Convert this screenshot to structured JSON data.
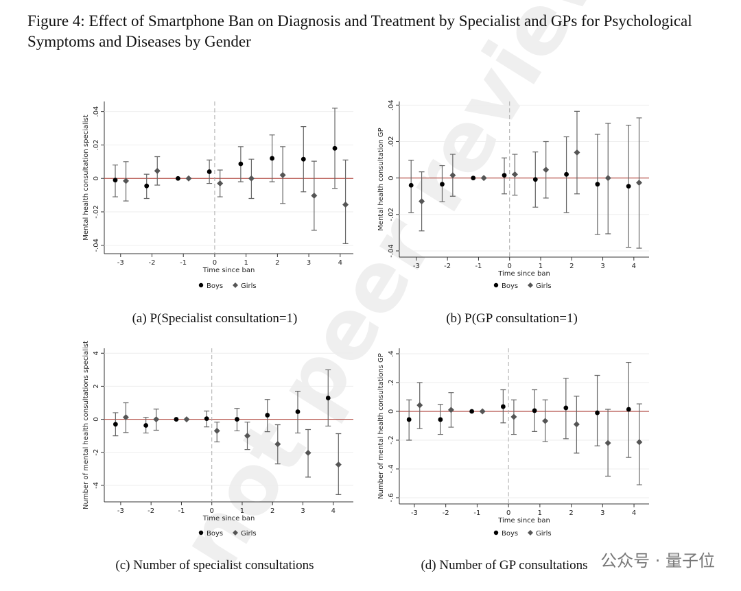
{
  "figure_title": "Figure 4: Effect of Smartphone Ban on Diagnosis and Treatment by Specialist and GPs for Psychological Symptoms and Diseases by Gender",
  "watermark": "not peer review",
  "source_mark": "公众号 · 量子位",
  "chart_data": [
    {
      "type": "errorbar",
      "caption": "(a) P(Specialist consultation=1)",
      "x_label": "Time since ban",
      "y_label": "Mental health consultation specialist",
      "x": [
        -3,
        -2,
        -1,
        0,
        1,
        2,
        3,
        4
      ],
      "xlim": [
        -3.52,
        4.42
      ],
      "xticks": [
        -3,
        -2,
        -1,
        0,
        1,
        2,
        3,
        4
      ],
      "ylim": [
        -0.045,
        0.046
      ],
      "yticks": [
        {
          "value": -0.04,
          "label": "-.04"
        },
        {
          "value": -0.02,
          "label": "-.02"
        },
        0,
        {
          "value": 0.02,
          "label": ".02"
        },
        {
          "value": 0.04,
          "label": ".04"
        }
      ],
      "hline": 0,
      "vline": 0,
      "hline_color": "#b5524a",
      "series": [
        {
          "name": "Boys",
          "color": "#000000",
          "marker": "circle",
          "values": [
            -0.001,
            -0.0045,
            0,
            0.004,
            0.0087,
            0.012,
            0.0115,
            0.018
          ],
          "ci_low": [
            -0.011,
            -0.012,
            null,
            -0.003,
            -0.002,
            -0.002,
            -0.008,
            -0.006
          ],
          "ci_high": [
            0.008,
            0.0025,
            null,
            0.011,
            0.019,
            0.026,
            0.031,
            0.042
          ]
        },
        {
          "name": "Girls",
          "color": "#555555",
          "marker": "diamond",
          "values": [
            -0.0015,
            0.0045,
            0,
            -0.003,
            0,
            0.002,
            -0.0103,
            -0.0157
          ],
          "ci_low": [
            -0.0135,
            -0.004,
            null,
            -0.011,
            -0.012,
            -0.015,
            -0.031,
            -0.039
          ],
          "ci_high": [
            0.01,
            0.013,
            null,
            0.005,
            0.0115,
            0.019,
            0.0103,
            0.011
          ]
        }
      ]
    },
    {
      "type": "errorbar",
      "caption": "(b) P(GP consultation=1)",
      "x_label": "Time since ban",
      "y_label": "Mental health consultation GP",
      "x": [
        -3,
        -2,
        -1,
        0,
        1,
        2,
        3,
        4
      ],
      "xlim": [
        -3.55,
        4.49
      ],
      "xticks": [
        -3,
        -2,
        -1,
        0,
        1,
        2,
        3,
        4
      ],
      "ylim": [
        -0.0434,
        0.042
      ],
      "yticks": [
        {
          "value": -0.04,
          "label": "-.04"
        },
        {
          "value": -0.02,
          "label": "-.02"
        },
        0,
        {
          "value": 0.02,
          "label": ".02"
        },
        {
          "value": 0.04,
          "label": ".04"
        }
      ],
      "hline": 0,
      "vline": 0,
      "hline_color": "#b5524a",
      "series": [
        {
          "name": "Boys",
          "color": "#000000",
          "marker": "circle",
          "values": [
            -0.004,
            -0.0034,
            0,
            0.0015,
            -0.0008,
            0.002,
            -0.0034,
            -0.0045
          ],
          "ci_low": [
            -0.019,
            -0.013,
            null,
            -0.0087,
            -0.016,
            -0.019,
            -0.031,
            -0.038
          ],
          "ci_high": [
            0.0098,
            0.0068,
            null,
            0.011,
            0.0143,
            0.0226,
            0.024,
            0.029
          ]
        },
        {
          "name": "Girls",
          "color": "#555555",
          "marker": "diamond",
          "values": [
            -0.0128,
            0.0015,
            0,
            0.002,
            0.0045,
            0.014,
            0,
            -0.0026
          ],
          "ci_low": [
            -0.029,
            -0.01,
            null,
            -0.0094,
            -0.011,
            -0.0087,
            -0.0306,
            -0.0385
          ],
          "ci_high": [
            0.0034,
            0.013,
            null,
            0.013,
            0.02,
            0.0366,
            0.03,
            0.033
          ]
        }
      ]
    },
    {
      "type": "errorbar",
      "caption": "(c) Number of specialist consultations",
      "x_label": "Time since ban",
      "y_label": "Number of mental health consultations specialist",
      "x": [
        -3,
        -2,
        -1,
        0,
        1,
        2,
        3,
        4
      ],
      "xlim": [
        -3.54,
        4.66
      ],
      "xticks": [
        -3,
        -2,
        -1,
        0,
        1,
        2,
        3,
        4
      ],
      "ylim": [
        -5.0,
        4.3
      ],
      "yticks": [
        -4,
        -2,
        0,
        2,
        4
      ],
      "hline": 0,
      "vline": 0,
      "hline_color": "#b5524a",
      "series": [
        {
          "name": "Boys",
          "color": "#000000",
          "marker": "circle",
          "values": [
            -0.3,
            -0.37,
            0,
            0.04,
            0,
            0.25,
            0.46,
            1.29
          ],
          "ci_low": [
            -1.0,
            -0.83,
            null,
            -0.46,
            -0.7,
            -0.75,
            -0.83,
            -0.41
          ],
          "ci_high": [
            0.4,
            0.12,
            null,
            0.5,
            0.66,
            1.2,
            1.7,
            3.0
          ]
        },
        {
          "name": "Girls",
          "color": "#555555",
          "marker": "diamond",
          "values": [
            0.12,
            0,
            0,
            -0.7,
            -1.0,
            -1.5,
            -2.03,
            -2.74
          ],
          "ci_low": [
            -0.8,
            -0.66,
            null,
            -1.37,
            -1.83,
            -2.7,
            -3.5,
            -4.56
          ],
          "ci_high": [
            1.0,
            0.62,
            null,
            -0.17,
            -0.17,
            -0.33,
            -0.62,
            -0.87
          ]
        }
      ]
    },
    {
      "type": "errorbar",
      "caption": "(d) Number of GP consultations",
      "x_label": "Time since ban",
      "y_label": "Number of mental health consultations GP",
      "x": [
        -3,
        -2,
        -1,
        0,
        1,
        2,
        3,
        4
      ],
      "xlim": [
        -3.48,
        4.48
      ],
      "xticks": [
        -3,
        -2,
        -1,
        0,
        1,
        2,
        3,
        4
      ],
      "ylim": [
        -0.643,
        0.438
      ],
      "yticks": [
        {
          "value": -0.6,
          "label": "-.6"
        },
        {
          "value": -0.4,
          "label": "-.4"
        },
        {
          "value": -0.2,
          "label": "-.2"
        },
        0,
        {
          "value": 0.2,
          "label": ".2"
        },
        {
          "value": 0.4,
          "label": ".4"
        }
      ],
      "hline": 0,
      "vline": 0,
      "hline_color": "#b5524a",
      "series": [
        {
          "name": "Boys",
          "color": "#000000",
          "marker": "circle",
          "values": [
            -0.057,
            -0.057,
            0,
            0.033,
            0.005,
            0.024,
            -0.01,
            0.014
          ],
          "ci_low": [
            -0.2,
            -0.16,
            null,
            -0.08,
            -0.14,
            -0.19,
            -0.24,
            -0.32
          ],
          "ci_high": [
            0.08,
            0.048,
            null,
            0.15,
            0.15,
            0.23,
            0.25,
            0.34
          ]
        },
        {
          "name": "Girls",
          "color": "#555555",
          "marker": "diamond",
          "values": [
            0.043,
            0.01,
            0,
            -0.038,
            -0.067,
            -0.09,
            -0.22,
            -0.214
          ],
          "ci_low": [
            -0.12,
            -0.11,
            null,
            -0.16,
            -0.21,
            -0.29,
            -0.45,
            -0.51
          ],
          "ci_high": [
            0.2,
            0.13,
            null,
            0.08,
            0.08,
            0.105,
            0.014,
            0.052
          ]
        }
      ]
    }
  ]
}
